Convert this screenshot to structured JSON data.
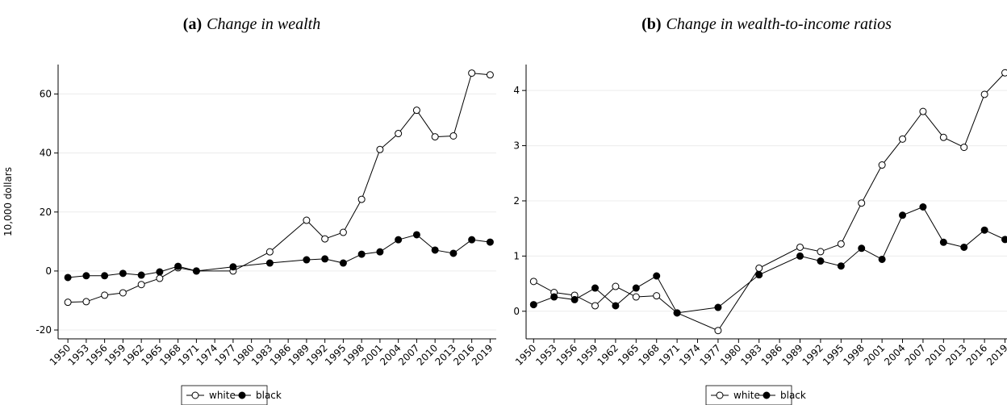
{
  "chart_data": [
    {
      "type": "line",
      "panel": "(a)",
      "title": "Change in wealth",
      "y_label": "10,000 dollars",
      "x": [
        1950,
        1953,
        1956,
        1959,
        1962,
        1965,
        1968,
        1971,
        1977,
        1983,
        1989,
        1992,
        1995,
        1998,
        2001,
        2004,
        2007,
        2010,
        2013,
        2016,
        2019
      ],
      "series": [
        {
          "name": "white",
          "color": "#000000",
          "marker_fill": "#ffffff",
          "values": [
            -10.6,
            -10.4,
            -8.2,
            -7.4,
            -4.6,
            -2.5,
            1.1,
            0,
            0,
            6.5,
            17.2,
            10.9,
            13.1,
            24.3,
            41.2,
            46.6,
            54.5,
            45.5,
            45.8,
            67.1,
            66.5
          ]
        },
        {
          "name": "black",
          "color": "#000000",
          "marker_fill": "#000000",
          "values": [
            -2.2,
            -1.6,
            -1.6,
            -0.8,
            -1.4,
            -0.3,
            1.6,
            0,
            1.4,
            2.7,
            3.8,
            4.1,
            2.7,
            5.7,
            6.5,
            10.6,
            12.3,
            7.1,
            6.0,
            10.6,
            9.8
          ]
        }
      ],
      "xlim": [
        1948.4,
        2020
      ],
      "xticks": [
        1950,
        1953,
        1956,
        1959,
        1962,
        1965,
        1968,
        1971,
        1974,
        1977,
        1980,
        1983,
        1986,
        1989,
        1992,
        1995,
        1998,
        2001,
        2004,
        2007,
        2010,
        2013,
        2016,
        2019
      ],
      "ylim": [
        -23,
        70
      ],
      "yticks": [
        -20,
        0,
        20,
        40,
        60
      ],
      "grid": true,
      "legend": "bottom"
    },
    {
      "type": "line",
      "panel": "(b)",
      "title": "Change in wealth-to-income ratios",
      "x": [
        1950,
        1953,
        1956,
        1959,
        1962,
        1965,
        1968,
        1971,
        1977,
        1983,
        1989,
        1992,
        1995,
        1998,
        2001,
        2004,
        2007,
        2010,
        2013,
        2016,
        2019
      ],
      "series": [
        {
          "name": "white",
          "color": "#000000",
          "marker_fill": "#ffffff",
          "values": [
            0.54,
            0.34,
            0.29,
            0.1,
            0.45,
            0.26,
            0.28,
            -0.03,
            -0.35,
            0.78,
            1.16,
            1.08,
            1.22,
            1.96,
            2.65,
            3.12,
            3.62,
            3.15,
            2.97,
            3.93,
            4.32
          ]
        },
        {
          "name": "black",
          "color": "#000000",
          "marker_fill": "#000000",
          "values": [
            0.12,
            0.26,
            0.21,
            0.42,
            0.1,
            0.42,
            0.64,
            -0.03,
            0.07,
            0.66,
            1.0,
            0.91,
            0.82,
            1.14,
            0.94,
            1.74,
            1.89,
            1.25,
            1.16,
            1.47,
            1.3
          ]
        }
      ],
      "xlim": [
        1948.9,
        2020
      ],
      "xticks": [
        1950,
        1953,
        1956,
        1959,
        1962,
        1965,
        1968,
        1971,
        1974,
        1977,
        1980,
        1983,
        1986,
        1989,
        1992,
        1995,
        1998,
        2001,
        2004,
        2007,
        2010,
        2013,
        2016,
        2019
      ],
      "ylim": [
        -0.5,
        4.47
      ],
      "yticks": [
        0,
        1,
        2,
        3,
        4
      ],
      "grid": true,
      "legend": "bottom"
    }
  ]
}
